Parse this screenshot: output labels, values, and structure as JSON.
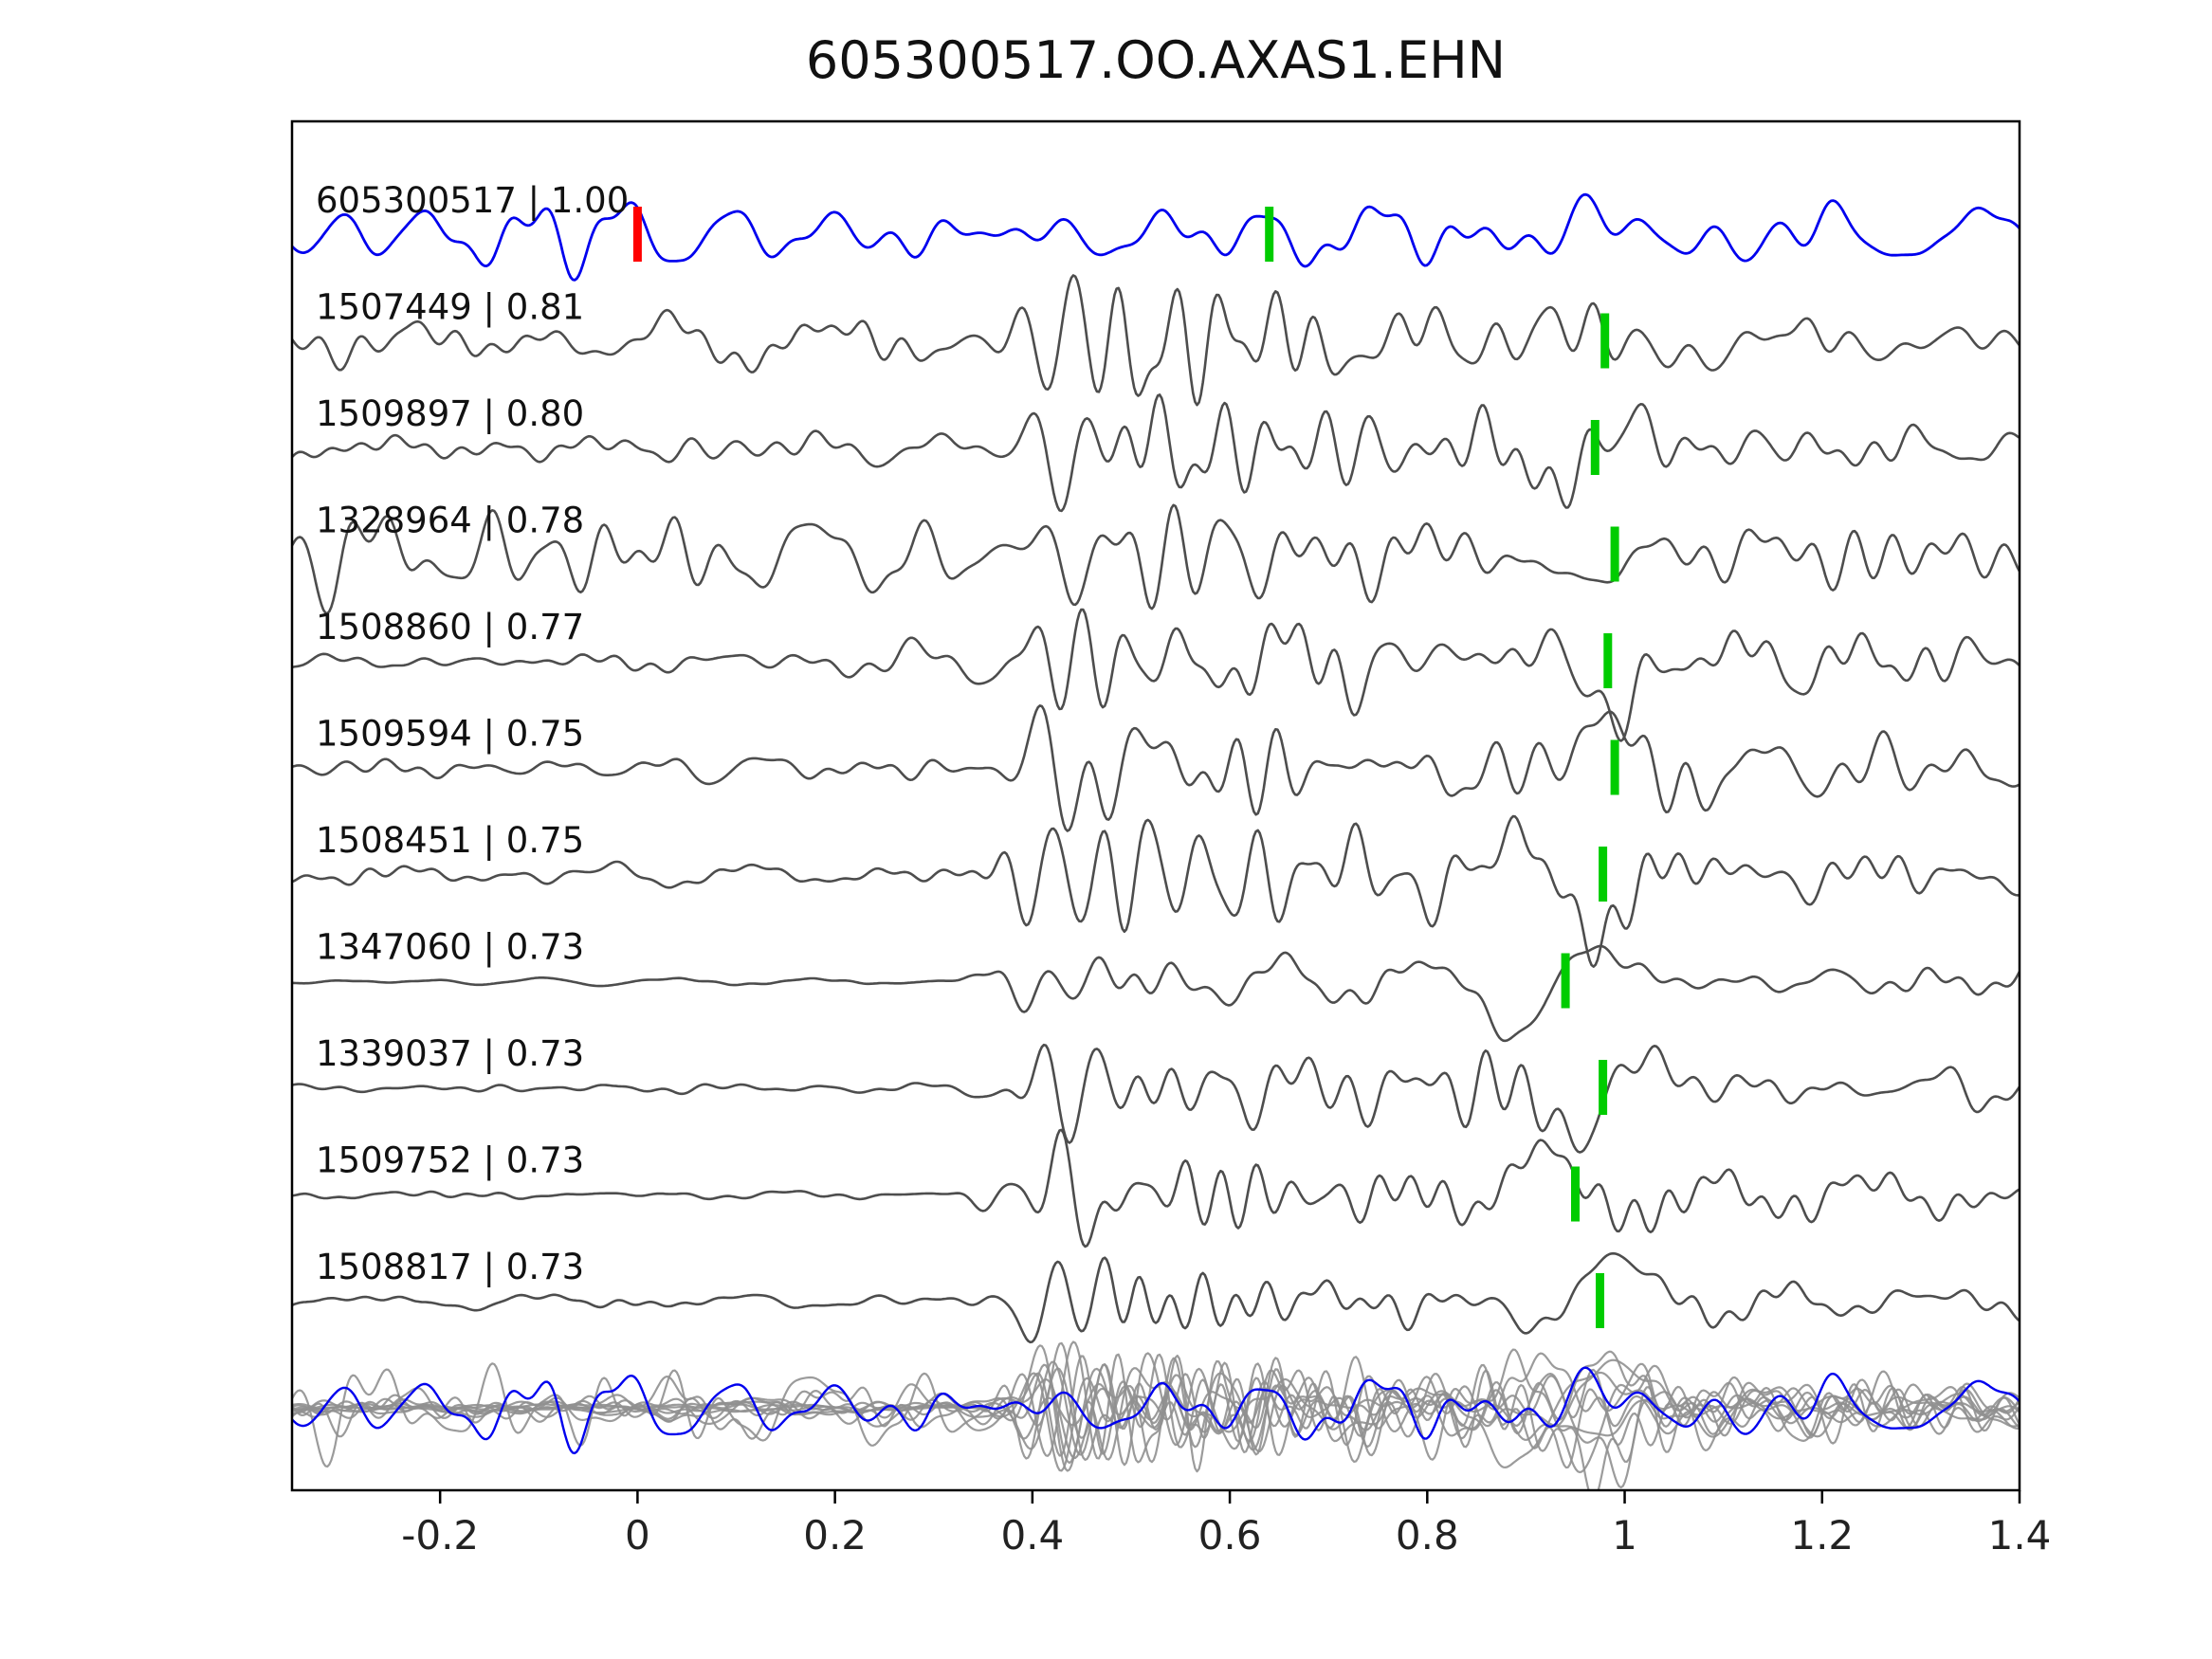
{
  "figure": {
    "background": "#ffffff"
  },
  "chart_data": {
    "type": "line",
    "title": "605300517.OO.AXAS1.EHN",
    "xlabel": "",
    "ylabel": "",
    "xlim": [
      -0.35,
      1.4
    ],
    "x_ticks": [
      -0.2,
      0,
      0.2,
      0.4,
      0.6,
      0.8,
      1,
      1.2,
      1.4
    ],
    "x_tick_labels": [
      "-0.2",
      "0",
      "0.2",
      "0.4",
      "0.6",
      "0.8",
      "1",
      "1.2",
      "1.4"
    ],
    "grid": false,
    "legend": "none",
    "description": "Template waveform (blue, top) compared against detected event waveforms (dark gray rows). Green bars mark pick times on each trace, the red bar marks time zero on the template trace, and the bottom row overlays all detection traces (gray) with the template (blue).",
    "colors": {
      "template": "#0000ee",
      "detection": "#4d4d4d",
      "overlay_gray": "#909090",
      "pick_green": "#00cc00",
      "pick_red": "#ff0000",
      "axis": "#000000",
      "text": "#111111"
    },
    "row_labels": [
      "605300517 | 1.00",
      "1507449 | 0.81",
      "1509897 | 0.80",
      "1328964 | 0.78",
      "1508860 | 0.77",
      "1509594 | 0.75",
      "1508451 | 0.75",
      "1347060 | 0.73",
      "1339037 | 0.73",
      "1509752 | 0.73",
      "1508817 | 0.73"
    ],
    "template_trace": {
      "id": "605300517",
      "correlation": "1.00",
      "label": "605300517 | 1.00",
      "red_tick_time": 0.0,
      "green_tick_time": 0.64,
      "bump_time": 1.03,
      "lf_amp": 0.7,
      "seed": 42
    },
    "detections": [
      {
        "id": "1507449",
        "correlation": "0.81",
        "label": "1507449 | 0.81",
        "pick_time": 0.98,
        "seed": 101,
        "pre_noise": 0.3,
        "burst_amp": 1.3,
        "lf_amp": 0.9,
        "hf_mix": 1.0
      },
      {
        "id": "1509897",
        "correlation": "0.80",
        "label": "1509897 | 0.80",
        "pick_time": 0.97,
        "seed": 102,
        "pre_noise": 0.25,
        "burst_amp": 1.25,
        "lf_amp": 0.9,
        "hf_mix": 1.0
      },
      {
        "id": "1328964",
        "correlation": "0.78",
        "label": "1328964 | 0.78",
        "pick_time": 0.99,
        "seed": 103,
        "pre_noise": 0.55,
        "burst_amp": 0.9,
        "lf_amp": 1.0,
        "hf_mix": 1.1
      },
      {
        "id": "1508860",
        "correlation": "0.77",
        "label": "1508860 | 0.77",
        "pick_time": 0.983,
        "seed": 104,
        "pre_noise": 0.15,
        "burst_amp": 1.1,
        "lf_amp": 1.4,
        "hf_mix": 1.0
      },
      {
        "id": "1509594",
        "correlation": "0.75",
        "label": "1509594 | 0.75",
        "pick_time": 0.99,
        "seed": 105,
        "pre_noise": 0.15,
        "burst_amp": 1.15,
        "lf_amp": 1.3,
        "hf_mix": 1.0
      },
      {
        "id": "1508451",
        "correlation": "0.75",
        "label": "1508451 | 0.75",
        "pick_time": 0.978,
        "seed": 106,
        "pre_noise": 0.12,
        "burst_amp": 1.2,
        "lf_amp": 1.35,
        "hf_mix": 0.95
      },
      {
        "id": "1347060",
        "correlation": "0.73",
        "label": "1347060 | 0.73",
        "pick_time": 0.94,
        "seed": 107,
        "pre_noise": 0.04,
        "burst_amp": 0.5,
        "lf_amp": 1.5,
        "hf_mix": 0.45
      },
      {
        "id": "1339037",
        "correlation": "0.73",
        "label": "1339037 | 0.73",
        "pick_time": 0.978,
        "seed": 108,
        "pre_noise": 0.06,
        "burst_amp": 1.15,
        "lf_amp": 1.3,
        "hf_mix": 0.9
      },
      {
        "id": "1509752",
        "correlation": "0.73",
        "label": "1509752 | 0.73",
        "pick_time": 0.95,
        "seed": 109,
        "pre_noise": 0.05,
        "burst_amp": 1.05,
        "lf_amp": 1.2,
        "hf_mix": 0.8
      },
      {
        "id": "1508817",
        "correlation": "0.73",
        "label": "1508817 | 0.73",
        "pick_time": 0.975,
        "seed": 110,
        "pre_noise": 0.08,
        "burst_amp": 1.0,
        "lf_amp": 1.45,
        "hf_mix": 0.85
      }
    ],
    "overlay_row": {
      "content": "all detection traces overlaid in gray with template trace in blue"
    }
  }
}
